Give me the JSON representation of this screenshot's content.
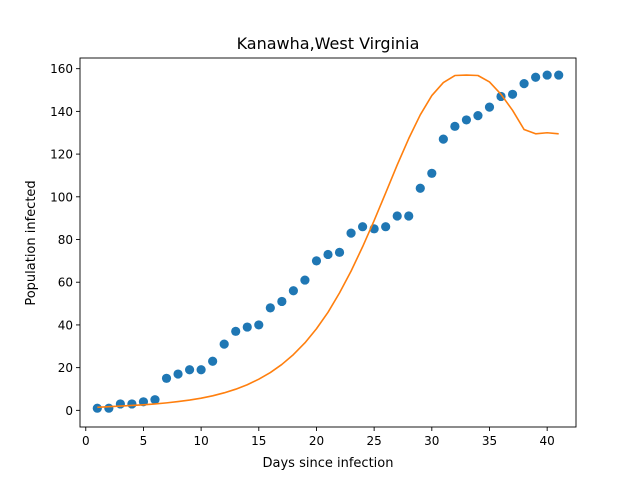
{
  "chart_data": {
    "type": "scatter",
    "title": "Kanawha,West Virginia",
    "xlabel": "Days since infection",
    "ylabel": "Population infected",
    "xlim": [
      -0.5,
      42.5
    ],
    "ylim": [
      -7.8,
      165.0
    ],
    "xticks": [
      0,
      5,
      10,
      15,
      20,
      25,
      30,
      35,
      40
    ],
    "yticks": [
      0,
      20,
      40,
      60,
      80,
      100,
      120,
      140,
      160
    ],
    "grid": false,
    "legend": "none",
    "series": [
      {
        "type": "scatter",
        "color": "#1f77b4",
        "x": [
          1,
          2,
          3,
          4,
          5,
          6,
          7,
          8,
          9,
          10,
          11,
          12,
          13,
          14,
          15,
          16,
          17,
          18,
          19,
          20,
          21,
          22,
          23,
          24,
          25,
          26,
          27,
          28,
          29,
          30,
          31,
          32,
          33,
          34,
          35,
          36,
          37,
          38,
          39,
          40,
          41
        ],
        "y": [
          1,
          1,
          3,
          3,
          4,
          5,
          15,
          17,
          19,
          19,
          23,
          31,
          37,
          39,
          40,
          48,
          51,
          56,
          61,
          70,
          73,
          74,
          83,
          86,
          85,
          86,
          91,
          91,
          104,
          111,
          127,
          133,
          136,
          138,
          142,
          147,
          148,
          153,
          156,
          157,
          157
        ]
      },
      {
        "type": "line",
        "color": "#ff7f0e",
        "x": [
          1,
          2,
          3,
          4,
          5,
          6,
          7,
          8,
          9,
          10,
          11,
          12,
          13,
          14,
          15,
          16,
          17,
          18,
          19,
          20,
          21,
          22,
          23,
          24,
          25,
          26,
          27,
          28,
          29,
          30,
          31,
          32,
          33,
          34,
          35,
          36,
          37,
          38,
          39,
          40,
          41
        ],
        "y": [
          1.4,
          1.7,
          2.0,
          2.3,
          2.6,
          3.0,
          3.5,
          4.1,
          4.8,
          5.7,
          6.8,
          8.2,
          9.9,
          12.0,
          14.6,
          17.7,
          21.5,
          26.1,
          31.6,
          38.2,
          45.9,
          55.0,
          65.2,
          76.6,
          88.9,
          101.8,
          114.9,
          127.3,
          138.4,
          147.4,
          153.5,
          156.8,
          157.0,
          156.8,
          153.8,
          148.0,
          140.5,
          131.5,
          129.5,
          130,
          129.5
        ]
      }
    ]
  }
}
